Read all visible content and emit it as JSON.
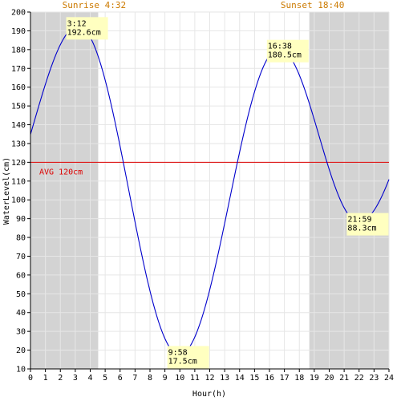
{
  "chart_data": {
    "type": "line",
    "title": "",
    "xlabel": "Hour(h)",
    "ylabel": "WaterLevel(cm)",
    "xlim": [
      0,
      24
    ],
    "ylim": [
      10,
      200
    ],
    "x_ticks": [
      0,
      1,
      2,
      3,
      4,
      5,
      6,
      7,
      8,
      9,
      10,
      11,
      12,
      13,
      14,
      15,
      16,
      17,
      18,
      19,
      20,
      21,
      22,
      23,
      24
    ],
    "y_ticks": [
      10,
      20,
      30,
      40,
      50,
      60,
      70,
      80,
      90,
      100,
      110,
      120,
      130,
      140,
      150,
      160,
      170,
      180,
      190,
      200
    ],
    "grid": true,
    "series": [
      {
        "name": "",
        "color": "#0000cc",
        "x": [
          0,
          3.2,
          9.967,
          16.633,
          21.983,
          24
        ],
        "y": [
          130,
          192.6,
          17.5,
          180.5,
          88.3,
          120
        ]
      }
    ],
    "extremes": [
      {
        "time": "3:12",
        "value": "192.6cm",
        "x": 3.2,
        "y": 192.6
      },
      {
        "time": "9:58",
        "value": "17.5cm",
        "x": 9.967,
        "y": 17.5
      },
      {
        "time": "16:38",
        "value": "180.5cm",
        "x": 16.633,
        "y": 180.5
      },
      {
        "time": "21:59",
        "value": "88.3cm",
        "x": 21.983,
        "y": 88.3
      }
    ],
    "average": {
      "value": 120,
      "label": "AVG 120cm",
      "color": "#dd0000"
    },
    "sunrise": {
      "hour": 4.533,
      "label": "Sunrise 4:32"
    },
    "sunset": {
      "hour": 18.667,
      "label": "Sunset 18:40"
    },
    "night_color": "#d3d3d3",
    "annotation_bg": "#ffffc0"
  }
}
